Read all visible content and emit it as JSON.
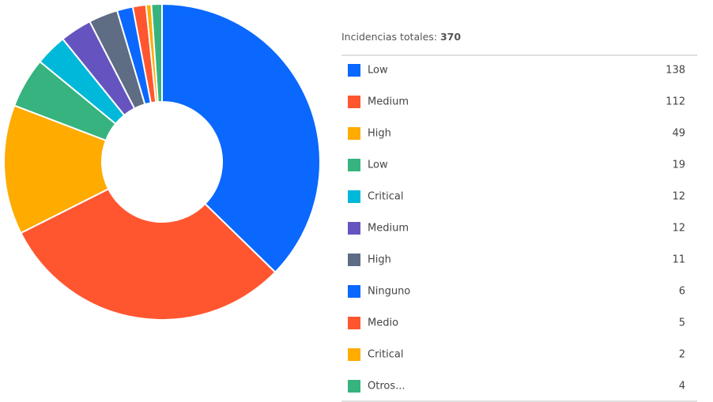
{
  "chart_data": {
    "type": "pie",
    "donut": true,
    "total_label": "Incidencias totales:",
    "total": 370,
    "categories": [
      "Low",
      "Medium",
      "High",
      "Low",
      "Critical",
      "Medium",
      "High",
      "Ninguno",
      "Medio",
      "Critical",
      "Otros..."
    ],
    "values": [
      138,
      112,
      49,
      19,
      12,
      12,
      11,
      6,
      5,
      2,
      4
    ],
    "colors": [
      "#0a68ff",
      "#ff5630",
      "#ffab00",
      "#36b37e",
      "#00b8d9",
      "#6554c0",
      "#5e6c84",
      "#0a68ff",
      "#ff5630",
      "#ffab00",
      "#36b37e"
    ]
  }
}
